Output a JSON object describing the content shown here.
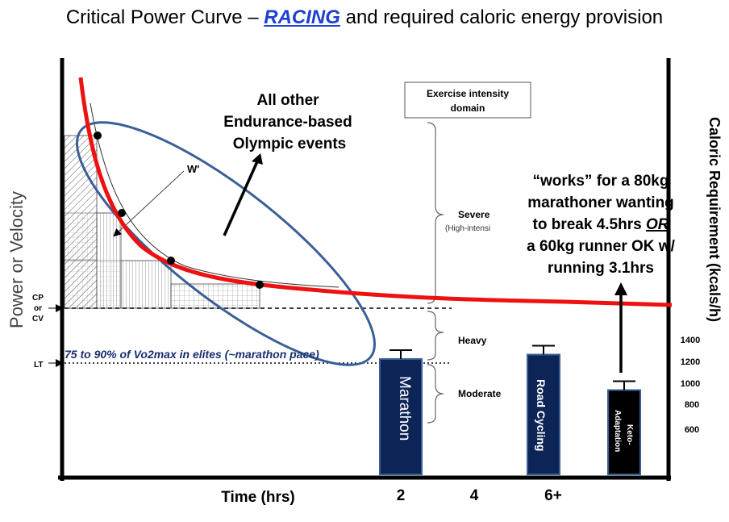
{
  "title": {
    "prefix": "Critical Power Curve – ",
    "emphasis": "RACING",
    "suffix": " and required caloric energy provision"
  },
  "colors": {
    "curve": "#ee1111",
    "ellipse": "#3a5f96",
    "bar_fill": "#0d2456",
    "keto_fill": "#000000",
    "text_blue": "#1a2f6e",
    "racing": "#1f3fd1"
  },
  "axes": {
    "y_left_label": "Power or Velocity",
    "y_right_label": "Caloric Requirement (kcals/h)",
    "x_label": "Time (hrs)",
    "x_ticks": [
      "2",
      "4",
      "6+"
    ],
    "y_right_ticks": [
      "1400",
      "1200",
      "1000",
      "800",
      "600"
    ],
    "y_left_markers": {
      "cp_line1": "CP",
      "cp_line2": "or",
      "cp_line3": "CV",
      "lt": "LT"
    }
  },
  "annotations": {
    "olympic_line1": "All other",
    "olympic_line2": "Endurance-based",
    "olympic_line3": "Olympic events",
    "w_prime": "W'",
    "vo2max": "75 to 90% of Vo2max in elites (~marathon pace)",
    "keto_line1": "“works” for a 80kg",
    "keto_line2": "marathoner wanting",
    "keto_line3_prefix": "to break 4.5hrs ",
    "keto_line3_or": "OR",
    "keto_line4": "a 60kg runner OK w/",
    "keto_line5": "running 3.1hrs"
  },
  "domains": {
    "box_line1": "Exercise intensity",
    "box_line2": "domain",
    "severe": "Severe",
    "severe_sub": "(High-intensi",
    "heavy": "Heavy",
    "moderate": "Moderate"
  },
  "chart_data": {
    "type": "bar",
    "categories": [
      "Marathon",
      "Road Cycling",
      "Keto-\nAdaptation"
    ],
    "values": [
      1300,
      1350,
      950
    ],
    "error_bar_tops": [
      1400,
      1450,
      1050
    ],
    "bar_labels": {
      "marathon": "Marathon",
      "road_cycling": "Road Cycling",
      "keto_line1": "Keto-",
      "keto_line2": "Adaptation"
    },
    "ylabel": "Caloric Requirement (kcals/h)",
    "xlabel": "Time (hrs)",
    "critical_power_curve": {
      "type": "line",
      "note": "hyperbolic power-duration curve approaching CP asymptote"
    }
  }
}
